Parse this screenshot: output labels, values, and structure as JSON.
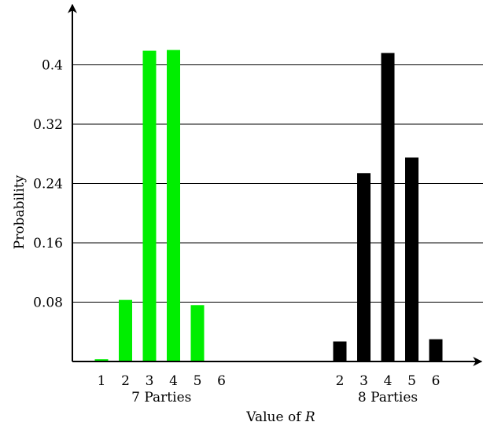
{
  "chart_data": {
    "type": "bar",
    "title": "",
    "xlabel_text": "Value of ",
    "xlabel_var": "R",
    "ylabel": "Probability",
    "ylim": [
      0,
      0.46
    ],
    "yticks": [
      "0.08",
      "0.16",
      "0.24",
      "0.32",
      "0.4"
    ],
    "grid": "horizontal",
    "groups": [
      {
        "label": "7 Parties",
        "color": "#00ee00",
        "categories": [
          "1",
          "2",
          "3",
          "4",
          "5",
          "6"
        ],
        "values": [
          0.003,
          0.083,
          0.419,
          0.42,
          0.076,
          0.0
        ]
      },
      {
        "label": "8 Parties",
        "color": "#000000",
        "categories": [
          "2",
          "3",
          "4",
          "5",
          "6"
        ],
        "values": [
          0.027,
          0.254,
          0.416,
          0.275,
          0.03
        ]
      }
    ]
  }
}
